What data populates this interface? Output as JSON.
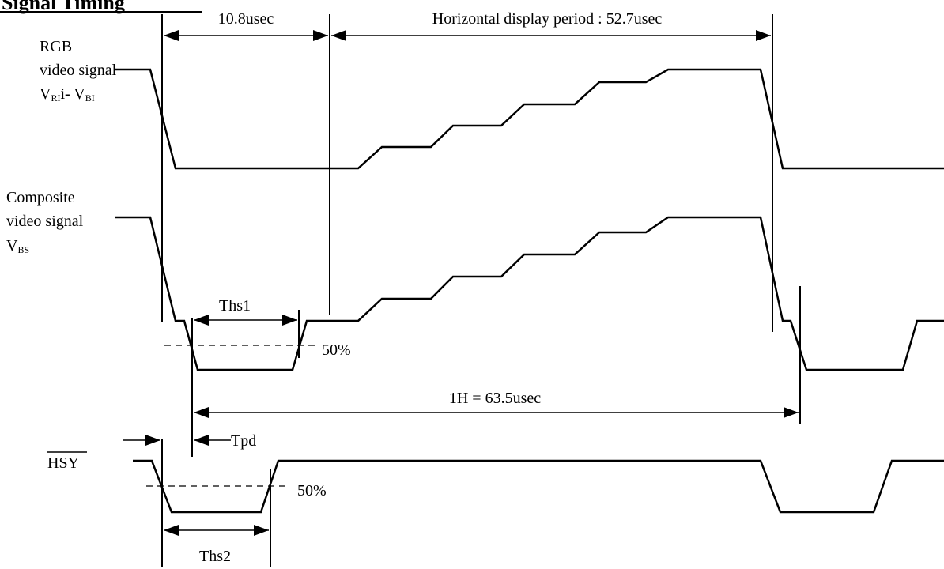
{
  "title": "Signal Timing",
  "signals": {
    "rgb_line1": "RGB",
    "rgb_line2": "video signal",
    "rgb_line3_prefix": "V",
    "rgb_sub1": "RI",
    "rgb_mid": "i- V",
    "rgb_sub2": "BI",
    "comp_line1": "Composite",
    "comp_line2": "video signal",
    "comp_line3_prefix": "V",
    "comp_sub": "BS",
    "hsy_label": "HSY"
  },
  "dimensions": {
    "blank": "10.8usec",
    "display": "Horizontal display period : 52.7usec",
    "ths1": "Ths1",
    "one_h": "1H = 63.5usec",
    "tpd": "Tpd",
    "ths2": "Ths2",
    "pct1": "50%",
    "pct2": "50%"
  }
}
